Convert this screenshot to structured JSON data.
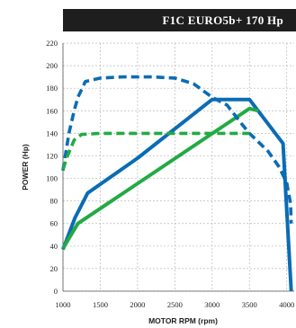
{
  "chart_data": {
    "type": "line",
    "title": "F1C EURO5b+ 170 Hp",
    "xlabel": "MOTOR RPM (rpm)",
    "ylabel": "POWER (Hp)",
    "xlim": [
      1000,
      4100
    ],
    "ylim": [
      0,
      220
    ],
    "x_ticks": [
      1000,
      1500,
      2000,
      2500,
      3000,
      3500,
      4000
    ],
    "y_ticks": [
      0,
      20,
      40,
      60,
      80,
      100,
      120,
      140,
      160,
      180,
      200,
      220
    ],
    "grid": true,
    "series": [
      {
        "color": "#0a6cb4",
        "style": "solid",
        "points": [
          [
            1000,
            37
          ],
          [
            1160,
            65
          ],
          [
            1330,
            87
          ],
          [
            2000,
            118
          ],
          [
            3000,
            170
          ],
          [
            3500,
            170
          ],
          [
            3950,
            131
          ],
          [
            4060,
            0
          ]
        ]
      },
      {
        "color": "#22aa44",
        "style": "solid",
        "points": [
          [
            1000,
            38
          ],
          [
            1200,
            60
          ],
          [
            3500,
            162
          ],
          [
            3620,
            160
          ]
        ]
      },
      {
        "color": "#0a6cb4",
        "style": "dashed",
        "points": [
          [
            1000,
            107
          ],
          [
            1080,
            140
          ],
          [
            1150,
            160
          ],
          [
            1200,
            172
          ],
          [
            1300,
            186
          ],
          [
            1500,
            189
          ],
          [
            1800,
            190
          ],
          [
            2200,
            190
          ],
          [
            2500,
            189
          ],
          [
            2750,
            184
          ],
          [
            3000,
            172
          ],
          [
            3200,
            165
          ],
          [
            3400,
            148
          ],
          [
            3500,
            140
          ],
          [
            3750,
            124
          ],
          [
            3900,
            110
          ],
          [
            4000,
            96
          ],
          [
            4050,
            78
          ],
          [
            4060,
            60
          ]
        ]
      },
      {
        "color": "#22aa44",
        "style": "dashed",
        "points": [
          [
            1000,
            108
          ],
          [
            1060,
            120
          ],
          [
            1150,
            134
          ],
          [
            1250,
            139
          ],
          [
            1500,
            140
          ],
          [
            2000,
            140
          ],
          [
            3000,
            140
          ],
          [
            3500,
            140
          ]
        ]
      }
    ]
  }
}
